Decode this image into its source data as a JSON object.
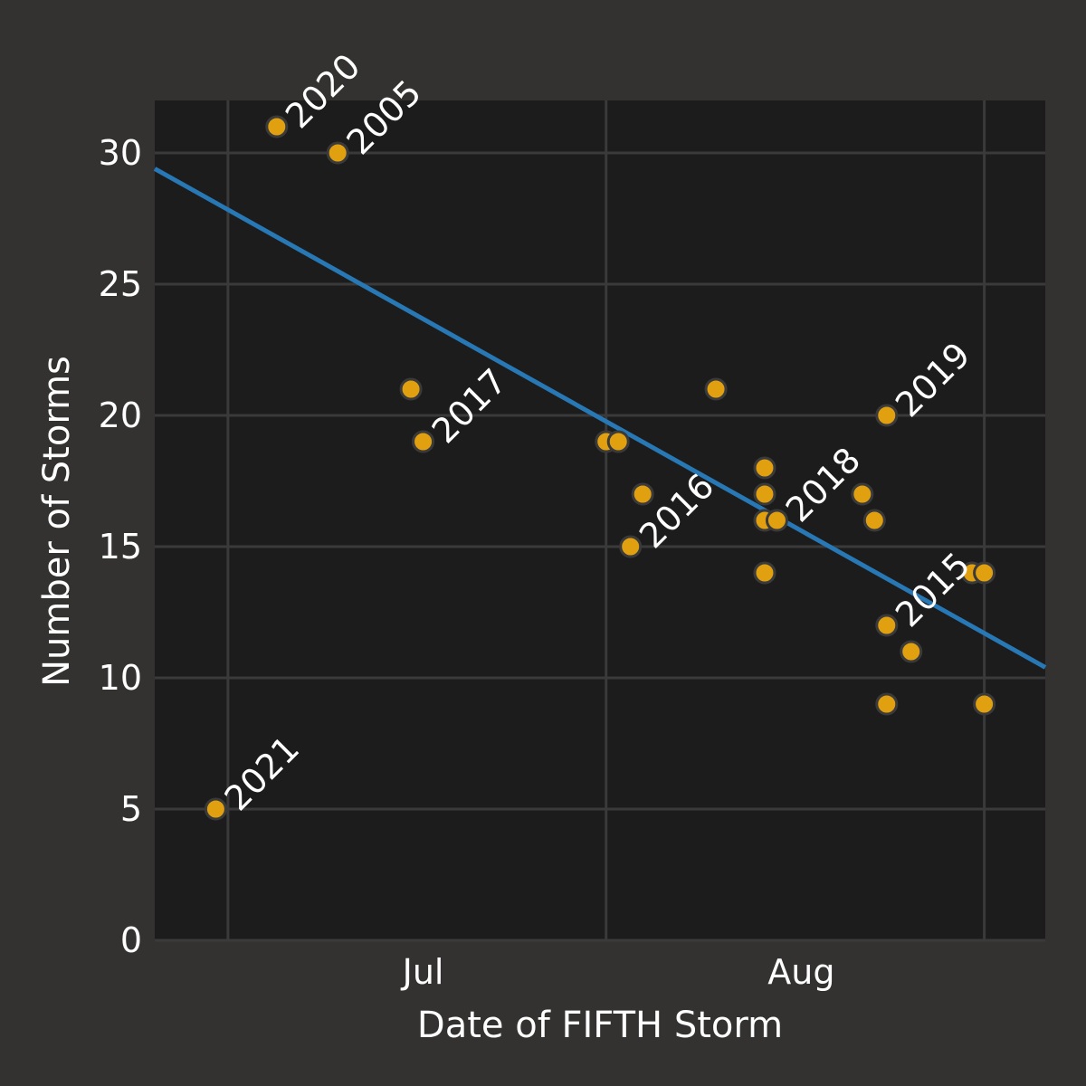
{
  "colors": {
    "figure_background": "#333230",
    "plot_background": "#1b1c1b",
    "grid": "#3a3a3a",
    "points": "#e0a010",
    "point_edge": "#3a3a3a",
    "trend_line": "#2878b5",
    "text": "#ffffff"
  },
  "chart_data": {
    "type": "scatter",
    "title": "",
    "xlabel": "Date of FIFTH Storm",
    "ylabel": "Number of Storms",
    "x_ticks": [
      {
        "date": "2021-07-01",
        "label": "Jul"
      },
      {
        "date": "2021-08-01",
        "label": "Aug"
      }
    ],
    "x_gridlines": [
      "2021-06-15",
      "2021-07-16",
      "2021-08-16"
    ],
    "xlim": [
      "2021-06-09",
      "2021-08-21"
    ],
    "y_ticks": [
      0,
      5,
      10,
      15,
      20,
      25,
      30
    ],
    "ylim": [
      0,
      32
    ],
    "grid": true,
    "points": [
      {
        "date": "2021-06-14",
        "storms": 5,
        "label": "2021"
      },
      {
        "date": "2021-06-19",
        "storms": 31,
        "label": "2020"
      },
      {
        "date": "2021-06-24",
        "storms": 30,
        "label": "2005"
      },
      {
        "date": "2021-06-30",
        "storms": 21,
        "label": ""
      },
      {
        "date": "2021-07-01",
        "storms": 19,
        "label": "2017"
      },
      {
        "date": "2021-07-16",
        "storms": 19,
        "label": ""
      },
      {
        "date": "2021-07-17",
        "storms": 19,
        "label": ""
      },
      {
        "date": "2021-07-18",
        "storms": 15,
        "label": "2016"
      },
      {
        "date": "2021-07-19",
        "storms": 17,
        "label": ""
      },
      {
        "date": "2021-07-25",
        "storms": 21,
        "label": ""
      },
      {
        "date": "2021-07-29",
        "storms": 18,
        "label": ""
      },
      {
        "date": "2021-07-29",
        "storms": 17,
        "label": ""
      },
      {
        "date": "2021-07-29",
        "storms": 16,
        "label": ""
      },
      {
        "date": "2021-07-29",
        "storms": 14,
        "label": ""
      },
      {
        "date": "2021-07-30",
        "storms": 16,
        "label": "2018"
      },
      {
        "date": "2021-08-06",
        "storms": 17,
        "label": ""
      },
      {
        "date": "2021-08-07",
        "storms": 16,
        "label": ""
      },
      {
        "date": "2021-08-08",
        "storms": 20,
        "label": "2019"
      },
      {
        "date": "2021-08-08",
        "storms": 12,
        "label": "2015"
      },
      {
        "date": "2021-08-08",
        "storms": 9,
        "label": ""
      },
      {
        "date": "2021-08-10",
        "storms": 11,
        "label": ""
      },
      {
        "date": "2021-08-15",
        "storms": 14,
        "label": ""
      },
      {
        "date": "2021-08-16",
        "storms": 14,
        "label": ""
      },
      {
        "date": "2021-08-16",
        "storms": 9,
        "label": ""
      }
    ],
    "trend_line": {
      "start": {
        "date": "2021-06-09",
        "storms": 29.4
      },
      "end": {
        "date": "2021-08-21",
        "storms": 10.4
      }
    }
  }
}
